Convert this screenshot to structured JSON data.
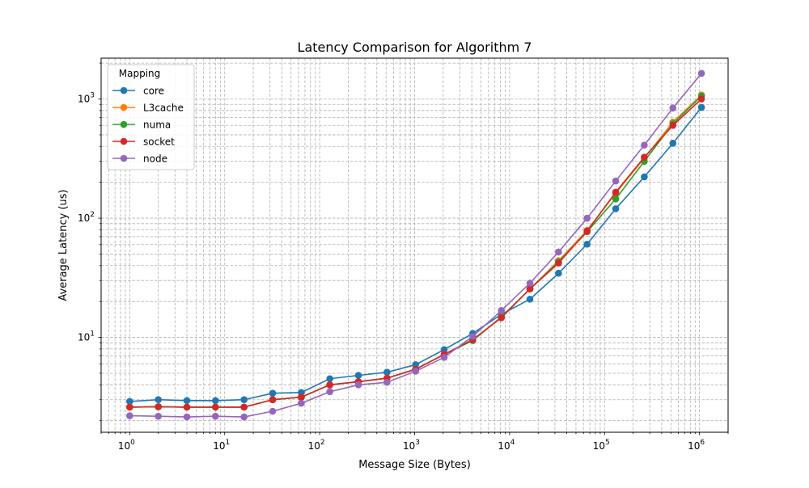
{
  "chart_data": {
    "type": "line",
    "title": "Latency Comparison for Algorithm 7",
    "xlabel": "Message Size (Bytes)",
    "ylabel": "Average Latency (us)",
    "x_scale": "log",
    "y_scale": "log",
    "xlim": [
      0.5,
      2000000
    ],
    "ylim": [
      1.6,
      2200
    ],
    "x_ticks": [
      1,
      10,
      100,
      1000,
      10000,
      100000,
      1000000
    ],
    "x_tick_base": "10",
    "x_tick_exponents": [
      "0",
      "1",
      "2",
      "3",
      "4",
      "5",
      "6"
    ],
    "y_ticks": [
      10,
      100,
      1000
    ],
    "y_tick_base": "10",
    "y_tick_exponents": [
      "1",
      "2",
      "3"
    ],
    "grid": true,
    "legend_title": "Mapping",
    "legend_position": "top-left",
    "x": [
      1,
      2,
      4,
      8,
      16,
      32,
      64,
      128,
      256,
      512,
      1024,
      2048,
      4096,
      8192,
      16384,
      32768,
      65536,
      131072,
      262144,
      524288,
      1048576
    ],
    "series": [
      {
        "name": "core",
        "color": "#1f77b4",
        "values": [
          2.9,
          3.0,
          2.95,
          2.95,
          3.0,
          3.4,
          3.45,
          4.5,
          4.8,
          5.1,
          5.9,
          7.9,
          10.8,
          15.6,
          20.9,
          34.5,
          60.5,
          120,
          222,
          425,
          850
        ]
      },
      {
        "name": "L3cache",
        "color": "#ff7f0e",
        "values": [
          2.6,
          2.62,
          2.6,
          2.6,
          2.6,
          3.0,
          3.15,
          4.0,
          4.25,
          4.55,
          5.4,
          7.2,
          9.5,
          14.8,
          25.5,
          44,
          79,
          162,
          318,
          640,
          1080
        ]
      },
      {
        "name": "numa",
        "color": "#2ca02c",
        "values": [
          2.6,
          2.62,
          2.6,
          2.6,
          2.6,
          3.0,
          3.15,
          4.0,
          4.25,
          4.55,
          5.4,
          7.2,
          9.4,
          14.8,
          25.5,
          43,
          77,
          145,
          300,
          620,
          1060
        ]
      },
      {
        "name": "socket",
        "color": "#d62728",
        "values": [
          2.6,
          2.62,
          2.6,
          2.6,
          2.6,
          3.0,
          3.15,
          4.0,
          4.25,
          4.55,
          5.4,
          7.2,
          9.6,
          14.6,
          25.5,
          42,
          78,
          165,
          325,
          600,
          1000
        ]
      },
      {
        "name": "node",
        "color": "#9467bd",
        "values": [
          2.2,
          2.18,
          2.15,
          2.18,
          2.15,
          2.4,
          2.8,
          3.5,
          4.0,
          4.2,
          5.2,
          6.8,
          10.2,
          16.8,
          28.5,
          52,
          100,
          205,
          410,
          840,
          1640
        ]
      }
    ]
  }
}
